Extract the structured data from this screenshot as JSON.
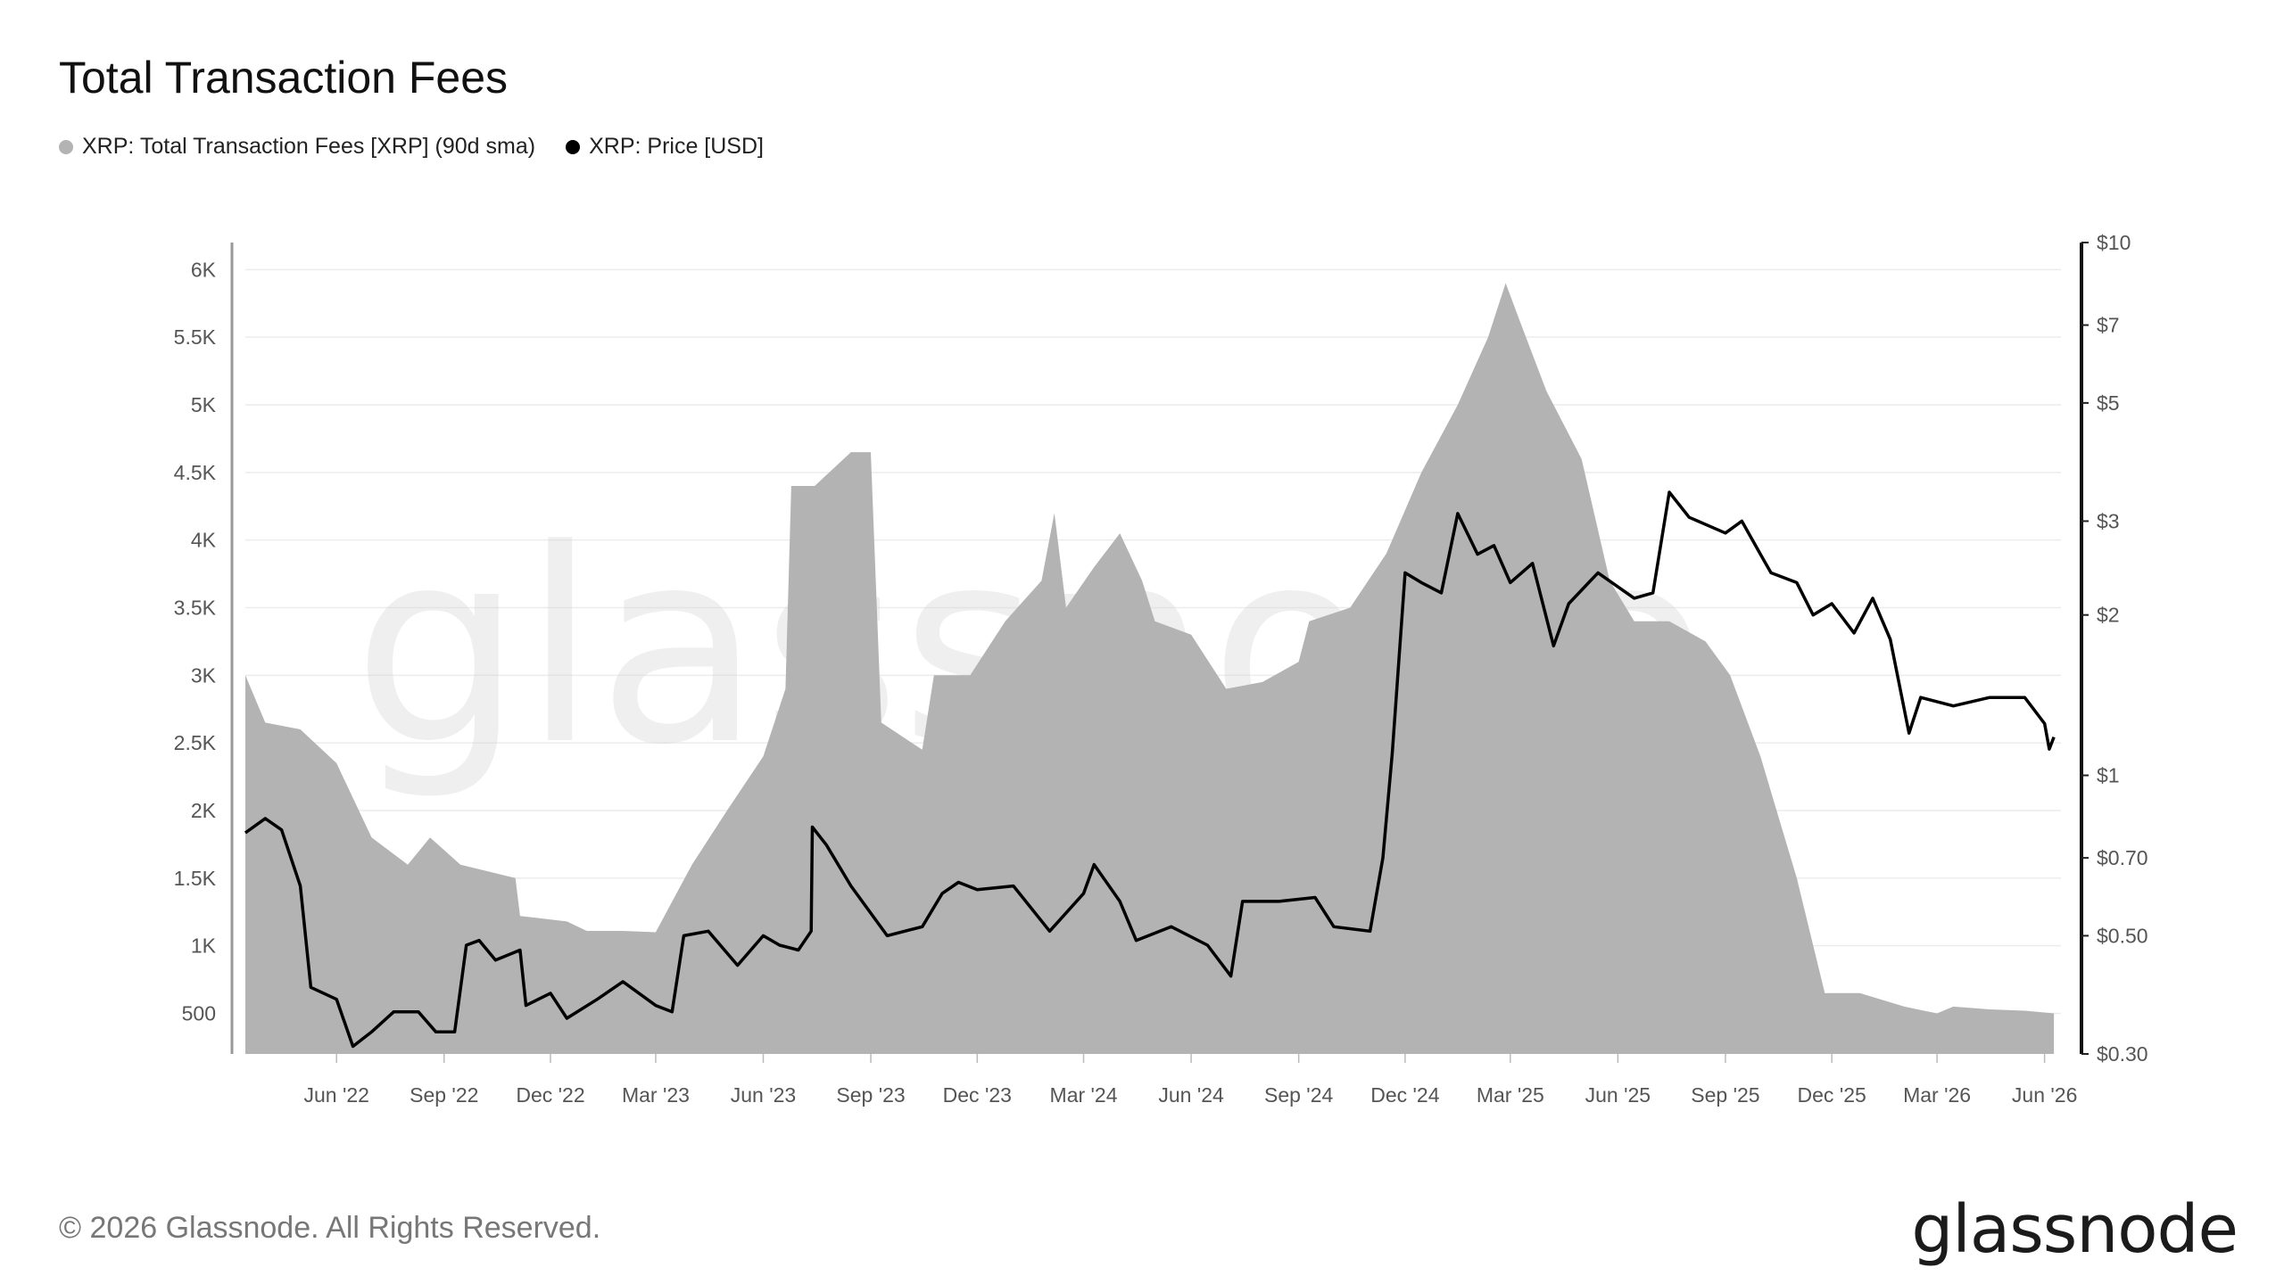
{
  "title": "Total Transaction Fees",
  "footer": "© 2026 Glassnode. All Rights Reserved.",
  "logo": "glassnode",
  "watermark": "glassnode",
  "colors": {
    "fees": "#b3b3b3",
    "price": "#000000",
    "grid": "#ececec",
    "axis": "#999999"
  },
  "chart_data": {
    "type": "area",
    "title": "Total Transaction Fees",
    "legend": "top-left",
    "grid": true,
    "x_ticks": [
      "Jun '22",
      "Sep '22",
      "Dec '22",
      "Mar '23",
      "Jun '23",
      "Sep '23",
      "Dec '23",
      "Mar '24",
      "Jun '24",
      "Sep '24",
      "Dec '24",
      "Mar '25",
      "Jun '25",
      "Sep '25",
      "Dec '25",
      "Mar '26",
      "Jun '26"
    ],
    "x_range": [
      "2022-03-15",
      "2026-06-15"
    ],
    "y_left": {
      "ticks": [
        500,
        1000,
        1500,
        2000,
        2500,
        3000,
        3500,
        4000,
        4500,
        5000,
        5500,
        6000
      ],
      "tick_labels": [
        "500",
        "1K",
        "1.5K",
        "2K",
        "2.5K",
        "3K",
        "3.5K",
        "4K",
        "4.5K",
        "5K",
        "5.5K",
        "6K"
      ],
      "range": [
        200,
        6200
      ]
    },
    "y_right": {
      "scale": "log",
      "ticks": [
        0.3,
        0.5,
        0.7,
        1,
        2,
        3,
        5,
        7,
        10
      ],
      "tick_labels": [
        "$0.30",
        "$0.50",
        "$0.70",
        "$1",
        "$2",
        "$3",
        "$5",
        "$7",
        "$10"
      ],
      "range": [
        0.3,
        10
      ]
    },
    "series": [
      {
        "name": "XRP: Total Transaction Fees [XRP] (90d sma)",
        "type": "area",
        "axis": "left",
        "points": [
          [
            "2022-03-15",
            3000
          ],
          [
            "2022-04-01",
            2650
          ],
          [
            "2022-05-01",
            2600
          ],
          [
            "2022-06-01",
            2350
          ],
          [
            "2022-07-01",
            1800
          ],
          [
            "2022-08-01",
            1600
          ],
          [
            "2022-08-20",
            1800
          ],
          [
            "2022-09-15",
            1600
          ],
          [
            "2022-11-01",
            1500
          ],
          [
            "2022-11-05",
            1220
          ],
          [
            "2022-12-15",
            1180
          ],
          [
            "2023-01-01",
            1110
          ],
          [
            "2023-02-01",
            1110
          ],
          [
            "2023-03-01",
            1100
          ],
          [
            "2023-04-01",
            1600
          ],
          [
            "2023-05-01",
            2000
          ],
          [
            "2023-06-01",
            2400
          ],
          [
            "2023-06-20",
            2900
          ],
          [
            "2023-06-25",
            4400
          ],
          [
            "2023-07-15",
            4400
          ],
          [
            "2023-08-15",
            4650
          ],
          [
            "2023-09-01",
            4650
          ],
          [
            "2023-09-10",
            2650
          ],
          [
            "2023-10-15",
            2450
          ],
          [
            "2023-10-25",
            3000
          ],
          [
            "2023-11-25",
            3000
          ],
          [
            "2023-12-25",
            3400
          ],
          [
            "2024-01-25",
            3700
          ],
          [
            "2024-02-05",
            4200
          ],
          [
            "2024-02-15",
            3500
          ],
          [
            "2024-03-10",
            3800
          ],
          [
            "2024-04-01",
            4050
          ],
          [
            "2024-04-20",
            3700
          ],
          [
            "2024-05-01",
            3400
          ],
          [
            "2024-06-01",
            3300
          ],
          [
            "2024-07-01",
            2900
          ],
          [
            "2024-08-01",
            2950
          ],
          [
            "2024-09-01",
            3100
          ],
          [
            "2024-09-10",
            3400
          ],
          [
            "2024-10-15",
            3500
          ],
          [
            "2024-11-15",
            3900
          ],
          [
            "2024-12-15",
            4500
          ],
          [
            "2025-01-15",
            5000
          ],
          [
            "2025-02-10",
            5500
          ],
          [
            "2025-02-25",
            5900
          ],
          [
            "2025-03-10",
            5600
          ],
          [
            "2025-04-01",
            5100
          ],
          [
            "2025-05-01",
            4600
          ],
          [
            "2025-05-25",
            3700
          ],
          [
            "2025-06-15",
            3400
          ],
          [
            "2025-07-15",
            3400
          ],
          [
            "2025-08-15",
            3250
          ],
          [
            "2025-09-05",
            3000
          ],
          [
            "2025-10-01",
            2400
          ],
          [
            "2025-11-01",
            1500
          ],
          [
            "2025-11-25",
            650
          ],
          [
            "2025-12-25",
            650
          ],
          [
            "2026-02-01",
            550
          ],
          [
            "2026-03-01",
            500
          ],
          [
            "2026-03-15",
            550
          ],
          [
            "2026-04-15",
            530
          ],
          [
            "2026-05-15",
            520
          ],
          [
            "2026-06-09",
            500
          ]
        ]
      },
      {
        "name": "XRP: Price [USD]",
        "type": "line",
        "axis": "right",
        "points": [
          [
            "2022-03-15",
            0.78
          ],
          [
            "2022-04-01",
            0.83
          ],
          [
            "2022-04-15",
            0.79
          ],
          [
            "2022-05-01",
            0.62
          ],
          [
            "2022-05-10",
            0.4
          ],
          [
            "2022-06-01",
            0.38
          ],
          [
            "2022-06-15",
            0.31
          ],
          [
            "2022-07-01",
            0.33
          ],
          [
            "2022-07-20",
            0.36
          ],
          [
            "2022-08-10",
            0.36
          ],
          [
            "2022-08-25",
            0.33
          ],
          [
            "2022-09-10",
            0.33
          ],
          [
            "2022-09-20",
            0.48
          ],
          [
            "2022-10-01",
            0.49
          ],
          [
            "2022-10-15",
            0.45
          ],
          [
            "2022-11-05",
            0.47
          ],
          [
            "2022-11-10",
            0.37
          ],
          [
            "2022-12-01",
            0.39
          ],
          [
            "2022-12-15",
            0.35
          ],
          [
            "2023-01-10",
            0.38
          ],
          [
            "2023-02-01",
            0.41
          ],
          [
            "2023-03-01",
            0.37
          ],
          [
            "2023-03-15",
            0.36
          ],
          [
            "2023-03-25",
            0.5
          ],
          [
            "2023-04-15",
            0.51
          ],
          [
            "2023-05-10",
            0.44
          ],
          [
            "2023-06-01",
            0.5
          ],
          [
            "2023-06-15",
            0.48
          ],
          [
            "2023-07-01",
            0.47
          ],
          [
            "2023-07-12",
            0.51
          ],
          [
            "2023-07-13",
            0.8
          ],
          [
            "2023-07-25",
            0.74
          ],
          [
            "2023-08-15",
            0.62
          ],
          [
            "2023-09-15",
            0.5
          ],
          [
            "2023-10-15",
            0.52
          ],
          [
            "2023-11-01",
            0.6
          ],
          [
            "2023-11-15",
            0.63
          ],
          [
            "2023-12-01",
            0.61
          ],
          [
            "2024-01-01",
            0.62
          ],
          [
            "2024-02-01",
            0.51
          ],
          [
            "2024-03-01",
            0.6
          ],
          [
            "2024-03-10",
            0.68
          ],
          [
            "2024-04-01",
            0.58
          ],
          [
            "2024-04-15",
            0.49
          ],
          [
            "2024-05-15",
            0.52
          ],
          [
            "2024-06-15",
            0.48
          ],
          [
            "2024-07-05",
            0.42
          ],
          [
            "2024-07-15",
            0.58
          ],
          [
            "2024-08-15",
            0.58
          ],
          [
            "2024-09-15",
            0.59
          ],
          [
            "2024-10-01",
            0.52
          ],
          [
            "2024-11-01",
            0.51
          ],
          [
            "2024-11-12",
            0.7
          ],
          [
            "2024-11-20",
            1.1
          ],
          [
            "2024-12-01",
            2.4
          ],
          [
            "2024-12-15",
            2.3
          ],
          [
            "2025-01-01",
            2.2
          ],
          [
            "2025-01-15",
            3.1
          ],
          [
            "2025-02-01",
            2.6
          ],
          [
            "2025-02-15",
            2.7
          ],
          [
            "2025-03-01",
            2.3
          ],
          [
            "2025-03-20",
            2.5
          ],
          [
            "2025-04-07",
            1.75
          ],
          [
            "2025-04-20",
            2.1
          ],
          [
            "2025-05-15",
            2.4
          ],
          [
            "2025-06-15",
            2.15
          ],
          [
            "2025-07-01",
            2.2
          ],
          [
            "2025-07-15",
            3.4
          ],
          [
            "2025-08-01",
            3.05
          ],
          [
            "2025-09-01",
            2.85
          ],
          [
            "2025-09-15",
            3.0
          ],
          [
            "2025-10-01",
            2.6
          ],
          [
            "2025-10-10",
            2.4
          ],
          [
            "2025-11-01",
            2.3
          ],
          [
            "2025-11-15",
            2.0
          ],
          [
            "2025-12-01",
            2.1
          ],
          [
            "2025-12-20",
            1.85
          ],
          [
            "2026-01-05",
            2.15
          ],
          [
            "2026-01-20",
            1.8
          ],
          [
            "2026-02-05",
            1.2
          ],
          [
            "2026-02-15",
            1.4
          ],
          [
            "2026-03-15",
            1.35
          ],
          [
            "2026-04-15",
            1.4
          ],
          [
            "2026-05-15",
            1.4
          ],
          [
            "2026-06-01",
            1.25
          ],
          [
            "2026-06-05",
            1.12
          ],
          [
            "2026-06-09",
            1.18
          ]
        ]
      }
    ]
  }
}
